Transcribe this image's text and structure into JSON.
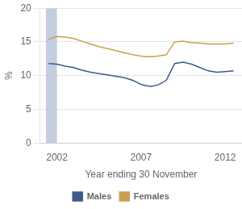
{
  "chart_data": {
    "type": "line",
    "xlabel": "Year ending 30 November",
    "ylabel": "%",
    "x": [
      2001.5,
      2002,
      2002.5,
      2003,
      2003.5,
      2004,
      2004.5,
      2005,
      2005.5,
      2006,
      2006.5,
      2007,
      2007.3,
      2007.6,
      2008,
      2008.5,
      2009,
      2009.5,
      2010,
      2010.5,
      2011,
      2011.5,
      2012,
      2012.5
    ],
    "series": [
      {
        "name": "Males",
        "color": "#3d5a8a",
        "values": [
          11.8,
          11.7,
          11.4,
          11.2,
          10.8,
          10.5,
          10.3,
          10.1,
          9.9,
          9.7,
          9.3,
          8.7,
          8.5,
          8.4,
          8.6,
          9.3,
          11.8,
          12.0,
          11.7,
          11.2,
          10.7,
          10.5,
          10.6,
          10.7
        ]
      },
      {
        "name": "Females",
        "color": "#c8a050",
        "values": [
          15.4,
          15.8,
          15.7,
          15.5,
          15.1,
          14.7,
          14.3,
          14.0,
          13.7,
          13.4,
          13.1,
          12.9,
          12.8,
          12.8,
          12.9,
          13.1,
          15.0,
          15.1,
          14.9,
          14.8,
          14.7,
          14.7,
          14.7,
          14.8
        ]
      }
    ],
    "xlim": [
      2001.0,
      2013.0
    ],
    "xticks": [
      2002,
      2007,
      2012
    ],
    "ylim": [
      0,
      20
    ],
    "yticks": [
      0,
      5,
      10,
      15,
      20
    ],
    "grid": true,
    "legend": "bottom",
    "shaded_x": [
      2001.35,
      2002.0
    ],
    "shaded_color": "#b8c4d8"
  }
}
